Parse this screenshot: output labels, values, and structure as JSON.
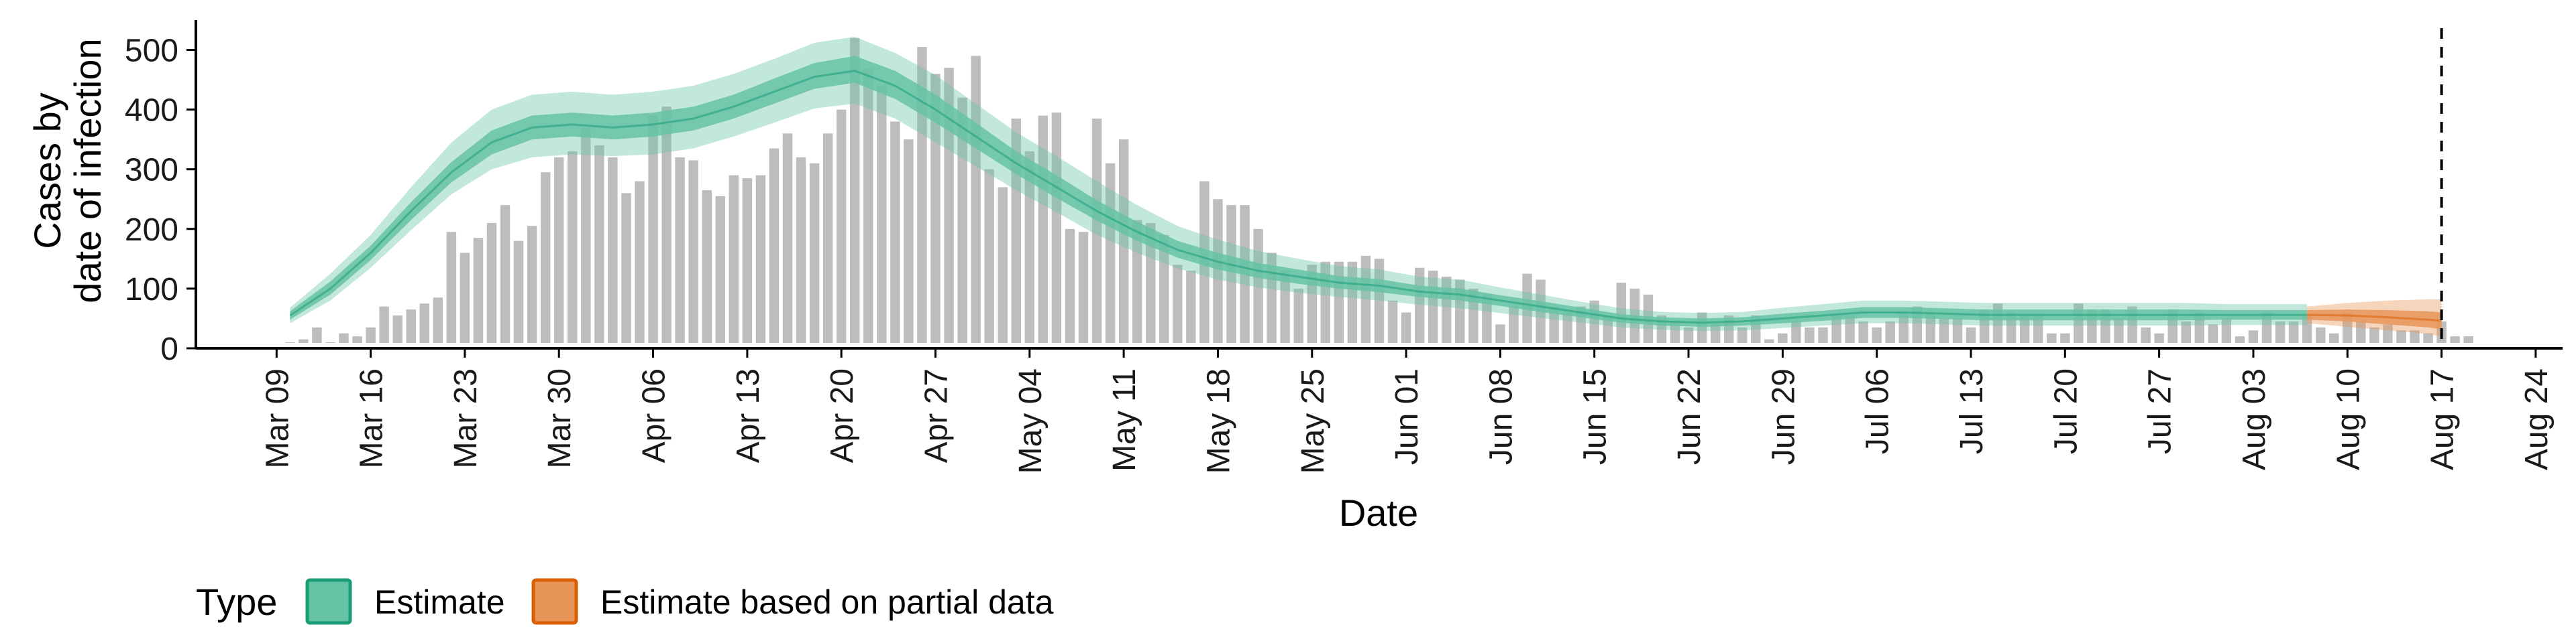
{
  "chart_data": {
    "type": "bar",
    "xlabel": "Date",
    "ylabel_lines": [
      "Cases by",
      "date of infection"
    ],
    "ylim": [
      0,
      550
    ],
    "yticks": [
      0,
      100,
      200,
      300,
      400,
      500
    ],
    "xlim": [
      "2020-03-03",
      "2020-08-26"
    ],
    "xticks": [
      "2020-03-09",
      "2020-03-16",
      "2020-03-23",
      "2020-03-30",
      "2020-04-06",
      "2020-04-13",
      "2020-04-20",
      "2020-04-27",
      "2020-05-04",
      "2020-05-11",
      "2020-05-18",
      "2020-05-25",
      "2020-06-01",
      "2020-06-08",
      "2020-06-15",
      "2020-06-22",
      "2020-06-29",
      "2020-07-06",
      "2020-07-13",
      "2020-07-20",
      "2020-07-27",
      "2020-08-03",
      "2020-08-10",
      "2020-08-17",
      "2020-08-24"
    ],
    "xtick_labels": [
      "Mar 09",
      "Mar 16",
      "Mar 23",
      "Mar 30",
      "Apr 06",
      "Apr 13",
      "Apr 20",
      "Apr 27",
      "May 04",
      "May 11",
      "May 18",
      "May 25",
      "Jun 01",
      "Jun 08",
      "Jun 15",
      "Jun 22",
      "Jun 29",
      "Jul 06",
      "Jul 13",
      "Jul 20",
      "Jul 27",
      "Aug 03",
      "Aug 10",
      "Aug 17",
      "Aug 24"
    ],
    "grid": false,
    "legend_position": "bottom-left",
    "colors": {
      "bars": "#bdbdbd",
      "estimate_fill": "#66c2a5",
      "estimate_edge": "#1b9e77",
      "partial_fill": "#e8955a",
      "partial_edge": "#d95f02",
      "vline": "#000000"
    },
    "bars": {
      "start_date": "2020-03-10",
      "values": [
        10,
        15,
        35,
        10,
        25,
        20,
        35,
        70,
        55,
        65,
        75,
        85,
        195,
        160,
        185,
        210,
        240,
        180,
        205,
        295,
        320,
        330,
        370,
        340,
        320,
        260,
        280,
        390,
        405,
        320,
        315,
        265,
        255,
        290,
        285,
        290,
        335,
        360,
        320,
        310,
        360,
        400,
        520,
        470,
        440,
        380,
        350,
        505,
        460,
        470,
        420,
        490,
        300,
        270,
        385,
        330,
        390,
        395,
        200,
        195,
        385,
        310,
        350,
        215,
        210,
        190,
        140,
        130,
        280,
        250,
        240,
        240,
        200,
        160,
        130,
        100,
        140,
        145,
        145,
        145,
        155,
        150,
        80,
        60,
        135,
        130,
        120,
        115,
        100,
        90,
        40,
        70,
        125,
        115,
        70,
        60,
        70,
        80,
        55,
        110,
        100,
        90,
        55,
        45,
        35,
        60,
        40,
        55,
        35,
        55,
        15,
        25,
        45,
        35,
        35,
        55,
        55,
        45,
        35,
        45,
        60,
        70,
        60,
        50,
        50,
        35,
        65,
        75,
        60,
        55,
        55,
        25,
        25,
        75,
        65,
        65,
        50,
        70,
        35,
        25,
        65,
        45,
        60,
        40,
        50,
        20,
        30,
        60,
        45,
        45,
        55,
        35,
        25,
        60,
        45,
        35,
        40,
        30,
        30,
        25,
        45,
        20,
        20
      ]
    },
    "legend": {
      "title": "Type",
      "items": [
        {
          "label": "Estimate",
          "color": "#66c2a5",
          "edge": "#1b9e77"
        },
        {
          "label": "Estimate based on partial data",
          "color": "#e8955a",
          "edge": "#d95f02"
        }
      ]
    },
    "series": [
      {
        "name": "Estimate",
        "dates": [
          "2020-03-10",
          "2020-03-13",
          "2020-03-16",
          "2020-03-19",
          "2020-03-22",
          "2020-03-25",
          "2020-03-28",
          "2020-03-31",
          "2020-04-03",
          "2020-04-06",
          "2020-04-09",
          "2020-04-12",
          "2020-04-15",
          "2020-04-18",
          "2020-04-21",
          "2020-04-24",
          "2020-04-27",
          "2020-04-30",
          "2020-05-03",
          "2020-05-06",
          "2020-05-09",
          "2020-05-12",
          "2020-05-15",
          "2020-05-18",
          "2020-05-21",
          "2020-05-24",
          "2020-05-27",
          "2020-05-30",
          "2020-06-02",
          "2020-06-05",
          "2020-06-08",
          "2020-06-11",
          "2020-06-14",
          "2020-06-17",
          "2020-06-20",
          "2020-06-23",
          "2020-06-26",
          "2020-06-29",
          "2020-07-02",
          "2020-07-05",
          "2020-07-08",
          "2020-07-11",
          "2020-07-14",
          "2020-07-17",
          "2020-07-20",
          "2020-07-23",
          "2020-07-26",
          "2020-07-29",
          "2020-08-01",
          "2020-08-04",
          "2020-08-07"
        ],
        "median": [
          55,
          100,
          160,
          230,
          295,
          345,
          370,
          375,
          370,
          375,
          385,
          405,
          430,
          455,
          465,
          440,
          400,
          355,
          310,
          270,
          230,
          195,
          165,
          145,
          130,
          120,
          110,
          105,
          95,
          90,
          80,
          70,
          60,
          50,
          45,
          43,
          45,
          50,
          55,
          60,
          60,
          58,
          56,
          56,
          56,
          56,
          56,
          56,
          56,
          56,
          56
        ],
        "lower_50": [
          48,
          90,
          148,
          215,
          278,
          325,
          350,
          355,
          350,
          355,
          365,
          385,
          410,
          435,
          445,
          418,
          378,
          335,
          292,
          252,
          214,
          180,
          152,
          132,
          118,
          108,
          100,
          94,
          86,
          80,
          71,
          61,
          52,
          43,
          38,
          36,
          38,
          42,
          46,
          51,
          51,
          49,
          47,
          47,
          47,
          47,
          47,
          47,
          48,
          48,
          48
        ],
        "upper_50": [
          62,
          112,
          172,
          245,
          312,
          365,
          390,
          395,
          390,
          395,
          405,
          425,
          452,
          478,
          490,
          465,
          425,
          378,
          330,
          290,
          248,
          212,
          180,
          160,
          143,
          132,
          121,
          116,
          105,
          100,
          89,
          79,
          68,
          57,
          52,
          50,
          52,
          58,
          63,
          69,
          69,
          67,
          65,
          65,
          65,
          65,
          65,
          65,
          64,
          64,
          64
        ],
        "lower_90": [
          42,
          80,
          135,
          198,
          258,
          300,
          320,
          325,
          322,
          325,
          335,
          355,
          378,
          402,
          410,
          385,
          345,
          305,
          265,
          228,
          190,
          160,
          134,
          115,
          102,
          93,
          86,
          80,
          73,
          67,
          59,
          51,
          43,
          35,
          31,
          29,
          30,
          34,
          38,
          42,
          42,
          40,
          38,
          38,
          38,
          38,
          38,
          38,
          39,
          39,
          39
        ],
        "upper_90": [
          68,
          125,
          190,
          270,
          345,
          400,
          425,
          430,
          425,
          430,
          440,
          460,
          485,
          512,
          522,
          495,
          458,
          410,
          362,
          322,
          280,
          240,
          205,
          182,
          163,
          150,
          138,
          132,
          120,
          115,
          102,
          90,
          78,
          67,
          61,
          59,
          61,
          68,
          74,
          80,
          80,
          78,
          76,
          76,
          76,
          76,
          76,
          76,
          74,
          74,
          74
        ]
      },
      {
        "name": "Estimate based on partial data",
        "dates": [
          "2020-08-07",
          "2020-08-10",
          "2020-08-13",
          "2020-08-16",
          "2020-08-17"
        ],
        "median": [
          56,
          55,
          52,
          48,
          46
        ],
        "lower_50": [
          48,
          45,
          40,
          35,
          32
        ],
        "upper_50": [
          64,
          65,
          64,
          62,
          60
        ],
        "lower_90": [
          42,
          36,
          30,
          24,
          20
        ],
        "upper_90": [
          70,
          76,
          80,
          82,
          82
        ]
      }
    ],
    "vline_date": "2020-08-17"
  }
}
